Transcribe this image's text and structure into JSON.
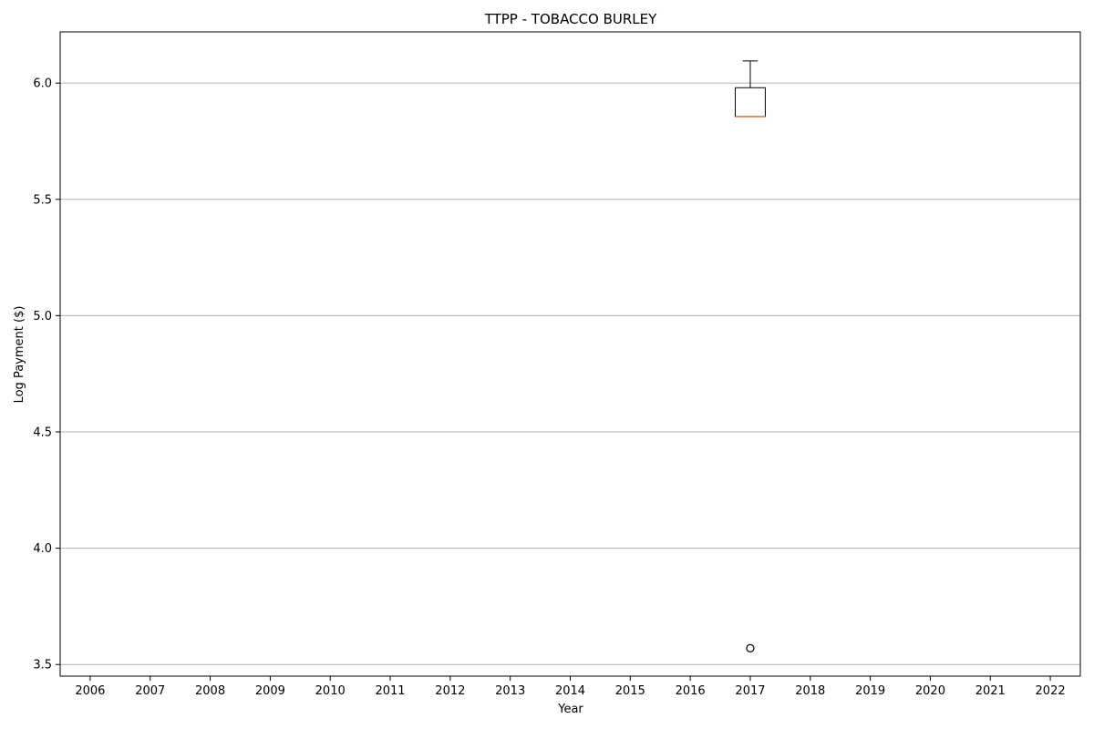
{
  "chart_data": {
    "type": "box",
    "title": "TTPP - TOBACCO BURLEY",
    "xlabel": "Year",
    "ylabel": "Log Payment ($)",
    "categories": [
      "2006",
      "2007",
      "2008",
      "2009",
      "2010",
      "2011",
      "2012",
      "2013",
      "2014",
      "2015",
      "2016",
      "2017",
      "2018",
      "2019",
      "2020",
      "2021",
      "2022"
    ],
    "y_ticks": [
      "3.5",
      "4.0",
      "4.5",
      "5.0",
      "5.5",
      "6.0"
    ],
    "ylim": [
      3.45,
      6.22
    ],
    "grid": "y",
    "boxes": [
      {
        "category": "2017",
        "whisker_low": 5.856,
        "q1": 5.856,
        "median": 5.856,
        "q3": 5.98,
        "whisker_high": 6.095,
        "outliers": [
          3.57
        ]
      }
    ],
    "colors": {
      "box": "#000000",
      "median": "#dd8452",
      "grid": "#b0b0b0"
    }
  }
}
